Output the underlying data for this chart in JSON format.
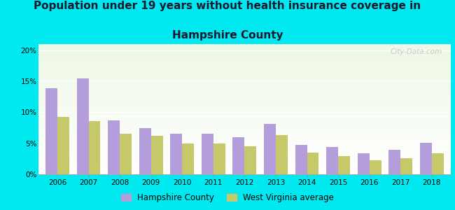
{
  "title_line1": "Population under 19 years without health insurance coverage in",
  "title_line2": "Hampshire County",
  "years": [
    2006,
    2007,
    2008,
    2009,
    2010,
    2011,
    2012,
    2013,
    2014,
    2015,
    2016,
    2017,
    2018
  ],
  "hampshire": [
    13.9,
    15.5,
    8.7,
    7.4,
    6.5,
    6.6,
    6.0,
    8.1,
    4.7,
    4.4,
    3.4,
    3.9,
    5.1
  ],
  "wv_average": [
    9.3,
    8.6,
    6.6,
    6.2,
    5.0,
    5.0,
    4.5,
    6.3,
    3.5,
    2.9,
    2.3,
    2.6,
    3.4
  ],
  "bar_color_hampshire": "#b39ddb",
  "bar_color_wv": "#c5c96a",
  "bg_outer": "#00e8f0",
  "ylim": [
    0,
    21
  ],
  "yticks": [
    0,
    5,
    10,
    15,
    20
  ],
  "ytick_labels": [
    "0%",
    "5%",
    "10%",
    "15%",
    "20%"
  ],
  "legend_hampshire": "Hampshire County",
  "legend_wv": "West Virginia average",
  "watermark": "City-Data.com"
}
